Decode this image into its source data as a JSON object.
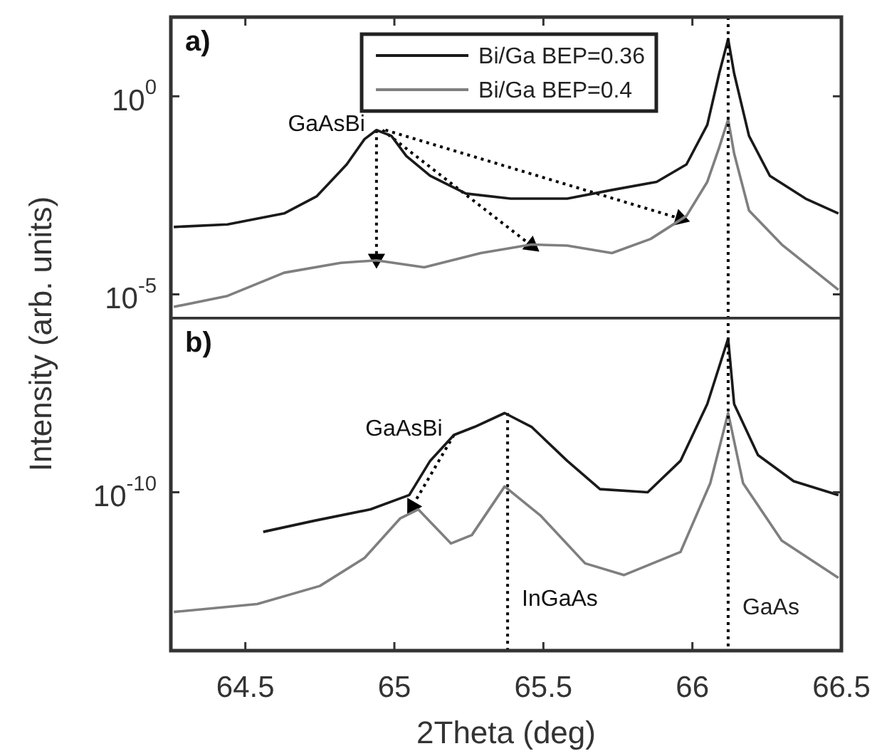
{
  "chart_data": {
    "type": "line",
    "xlabel": "2Theta (deg)",
    "ylabel": "Intensity (arb. units)",
    "xlim": [
      64.25,
      66.5
    ],
    "xticks": [
      64.5,
      65,
      65.5,
      66,
      66.5
    ],
    "ylim": [
      1e-14,
      100
    ],
    "yticks": [
      {
        "value": 1,
        "label": "10$^{0}$"
      },
      {
        "value": 1e-05,
        "label": "10$^{-5}$"
      },
      {
        "value": 1e-10,
        "label": "10$^{-10}$"
      }
    ],
    "log": "y",
    "legend": "top",
    "marker": "none",
    "line_style": "solid",
    "series": [
      {
        "name": "Bi/Ga BEP=0.36",
        "color": "#1a1a1a",
        "x": [
          64.26,
          64.44,
          64.63,
          64.74,
          64.84,
          64.9,
          64.94,
          64.99,
          65.04,
          65.12,
          65.24,
          65.39,
          65.58,
          65.73,
          65.88,
          65.98,
          66.05,
          66.09,
          66.12,
          66.14,
          66.19,
          66.26,
          66.38,
          66.49
        ],
        "values": [
          0.0005,
          0.00058,
          0.0011,
          0.003,
          0.019,
          0.083,
          0.14,
          0.1,
          0.031,
          0.0098,
          0.0035,
          0.0026,
          0.0026,
          0.0043,
          0.0069,
          0.019,
          0.19,
          3.8,
          28,
          3.8,
          0.1,
          0.0098,
          0.0026,
          0.0011
        ]
      },
      {
        "name": "Bi/Ga BEP=0.4",
        "color": "#7f7f7f",
        "x": [
          64.26,
          64.44,
          64.63,
          64.82,
          64.94,
          65.1,
          65.29,
          65.46,
          65.58,
          65.73,
          65.86,
          65.98,
          66.05,
          66.09,
          66.12,
          66.14,
          66.19,
          66.3,
          66.49
        ],
        "values": [
          4.8e-06,
          9.1e-06,
          3.5e-05,
          6.2e-05,
          7.2e-05,
          4.8e-05,
          0.00011,
          0.00018,
          0.00017,
          0.00011,
          0.00025,
          0.00095,
          0.0069,
          0.051,
          0.26,
          0.036,
          0.0013,
          0.00018,
          1.3e-05
        ]
      },
      {
        "color": "#1a1a1a",
        "x": [
          64.56,
          64.73,
          64.92,
          65.05,
          65.12,
          65.2,
          65.27,
          65.37,
          65.46,
          65.58,
          65.69,
          65.85,
          65.96,
          66.05,
          66.12,
          66.14,
          66.22,
          66.34,
          66.49
        ],
        "values": [
          1e-11,
          1.9e-11,
          3.7e-11,
          8.5e-11,
          6.2e-10,
          2.8e-09,
          4.5e-09,
          1e-08,
          4.5e-09,
          6.2e-10,
          1.2e-10,
          1e-10,
          6.2e-10,
          1.7e-08,
          7.6e-07,
          1.7e-08,
          8.7e-10,
          1.9e-10,
          8.5e-11
        ]
      },
      {
        "color": "#7f7f7f",
        "x": [
          64.26,
          64.54,
          64.75,
          64.9,
          65.02,
          65.08,
          65.19,
          65.26,
          65.37,
          65.49,
          65.64,
          65.77,
          65.96,
          66.06,
          66.12,
          66.17,
          66.3,
          66.49
        ],
        "values": [
          9.5e-14,
          1.5e-13,
          4.3e-13,
          2.2e-12,
          2.2e-11,
          3.7e-11,
          5.1e-12,
          8.3e-12,
          1.4e-10,
          2.6e-11,
          1.6e-12,
          8.1e-13,
          3.1e-12,
          1.7e-10,
          1e-08,
          1.7e-10,
          6e-12,
          6.9e-13
        ]
      },
      {
        "color": "#000000",
        "line_style": "dotted",
        "marker": "triangle",
        "x": [
          64.94,
          64.94
        ],
        "values": [
          0.14,
          7.9e-05
        ]
      },
      {
        "color": "#000000",
        "line_style": "dotted",
        "marker": "triangle",
        "x": [
          64.96,
          65.46
        ],
        "values": [
          0.14,
          0.00017
        ]
      },
      {
        "color": "#000000",
        "line_style": "dotted",
        "marker": "triangle",
        "x": [
          64.97,
          65.96
        ],
        "values": [
          0.14,
          0.00081
        ]
      },
      {
        "color": "#000000",
        "line_style": "dotted",
        "marker": "triangle",
        "x": [
          65.2,
          65.06
        ],
        "values": [
          2.8e-09,
          4.4e-11
        ]
      },
      {
        "color": "#000000",
        "line_style": "dotted",
        "marker": "none",
        "x": [
          65.38,
          65.38
        ],
        "values": [
          1e-08,
          1e-14
        ]
      }
    ],
    "ref_lines": [
      {
        "axis": "x",
        "value": 66.12,
        "label": "GaAs",
        "color": "#000000",
        "line_style": "dotted"
      },
      {
        "axis": "y",
        "value": 2.5e-06,
        "color": "#333333",
        "line_style": "solid"
      }
    ],
    "annotations": [
      "a)",
      "b)",
      {
        "text": "GaAsBi",
        "x": 64.94,
        "y": 0.14
      },
      {
        "text": "GaAsBi",
        "x": 65.2,
        "y": 2.8e-09
      },
      {
        "text": "InGaAs",
        "x": 65.38,
        "y": 1e-13
      }
    ]
  }
}
